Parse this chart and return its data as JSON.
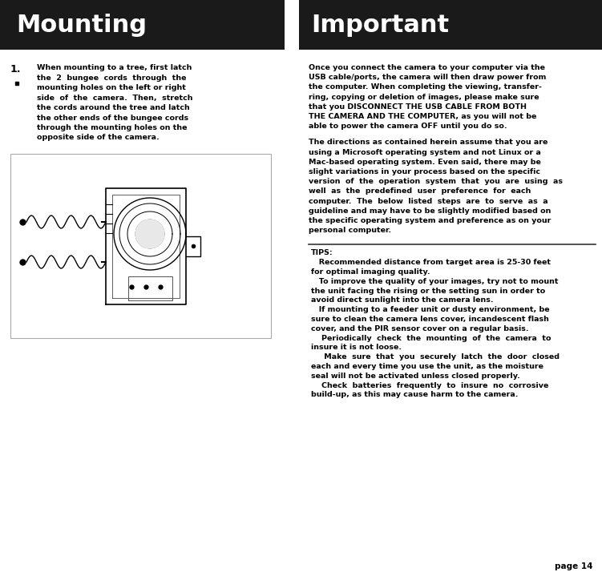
{
  "bg_color": "#ffffff",
  "header_bg": "#1a1a1a",
  "header_text_color": "#ffffff",
  "body_text_color": "#000000",
  "title_left": "Mounting",
  "title_right": "Important",
  "title_fontsize": 22,
  "page_number": "page 14",
  "body_fontsize": 6.8,
  "tips_fontsize": 6.8,
  "divider_color": "#333333",
  "tips_header": "TIPS:",
  "mounting_text_lines": [
    "When mounting to a tree, first latch",
    "the  2  bungee  cords  through  the",
    "mounting holes on the left or right",
    "side  of  the  camera.  Then,  stretch",
    "the cords around the tree and latch",
    "the other ends of the bungee cords",
    "through the mounting holes on the",
    "opposite side of the camera."
  ],
  "para1_lines": [
    "Once you connect the camera to your computer via the",
    "USB cable/ports, the camera will then draw power from",
    "the computer. When completing the viewing, transfer-",
    "ring, copying or deletion of images, please make sure",
    "that you DISCONNECT THE USB CABLE FROM BOTH",
    "THE CAMERA AND THE COMPUTER, as you will not be",
    "able to power the camera OFF until you do so."
  ],
  "para2_lines": [
    "The directions as contained herein assume that you are",
    "using a Microsoft operating system and not Linux or a",
    "Mac-based operating system. Even said, there may be",
    "slight variations in your process based on the specific",
    "version  of  the  operation  system  that  you  are  using  as",
    "well  as  the  predefined  user  preference  for  each",
    "computer.  The  below  listed  steps  are  to  serve  as  a",
    "guideline and may have to be slightly modified based on",
    "the specific operating system and preference as on your",
    "personal computer."
  ],
  "tips_lines": [
    "TIPS:",
    "   Recommended distance from target area is 25-30 feet",
    "for optimal imaging quality.",
    "   To improve the quality of your images, try not to mount",
    "the unit facing the rising or the setting sun in order to",
    "avoid direct sunlight into the camera lens.",
    "   If mounting to a feeder unit or dusty environment, be",
    "sure to clean the camera lens cover, incandescent flash",
    "cover, and the PIR sensor cover on a regular basis.",
    "    Periodically  check  the  mounting  of  the  camera  to",
    "insure it is not loose.",
    "     Make  sure  that  you  securely  latch  the  door  closed",
    "each and every time you use the unit, as the moisture",
    "seal will not be activated unless closed properly.",
    "    Check  batteries  frequently  to  insure  no  corrosive",
    "build-up, as this may cause harm to the camera."
  ]
}
